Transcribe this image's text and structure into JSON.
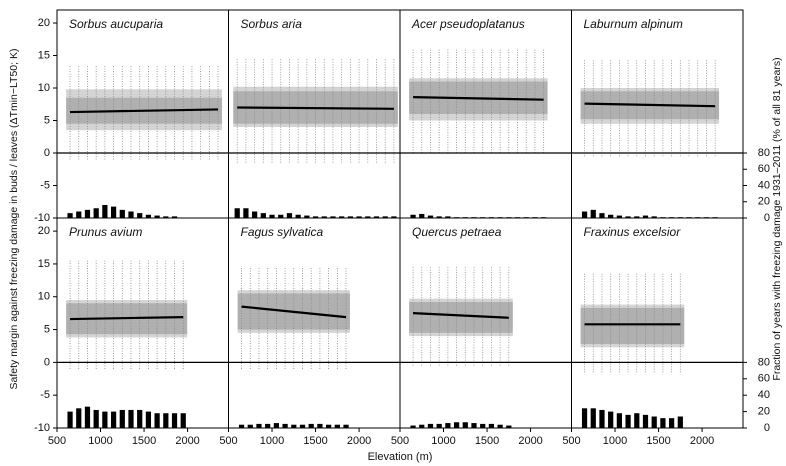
{
  "axes": {
    "xlabel": "Elevation (m)",
    "ylabel": "Safety margin against freezing damage in buds / leaves (ΔTmin−LT50; K)",
    "y2label": "Fraction of years with freezing damage 1931–2011 (% of all 81 years)",
    "xlim": [
      500,
      2470
    ],
    "xticks": [
      500,
      1000,
      1500,
      2000
    ],
    "ylim": [
      -10,
      22
    ],
    "yticks": [
      -10,
      -5,
      0,
      5,
      10,
      15,
      20
    ],
    "y2lim": [
      0,
      256
    ],
    "y2ticks": [
      0,
      20,
      40,
      60,
      80
    ]
  },
  "chart_data": [
    {
      "type": "box-bar",
      "title": "Sorbus aucuparia",
      "x": [
        650,
        750,
        850,
        950,
        1050,
        1150,
        1250,
        1350,
        1450,
        1550,
        1650,
        1750,
        1850,
        1950,
        2050,
        2150,
        2250,
        2350
      ],
      "trend": [
        6.3,
        6.7
      ],
      "band": [
        3.5,
        9.8
      ],
      "inner": [
        4.5,
        8.5
      ],
      "whisker": [
        -1,
        13.5
      ],
      "fraction": [
        6,
        8,
        10,
        12,
        16,
        14,
        10,
        8,
        6,
        4,
        3,
        2,
        2,
        0,
        0,
        0,
        0,
        0
      ]
    },
    {
      "type": "box-bar",
      "title": "Sorbus aria",
      "x": [
        600,
        700,
        800,
        900,
        1000,
        1100,
        1200,
        1300,
        1400,
        1500,
        1600,
        1700,
        1800,
        1900,
        2000,
        2100,
        2200,
        2300,
        2400
      ],
      "trend": [
        7.0,
        6.8
      ],
      "band": [
        4.0,
        10.2
      ],
      "inner": [
        4.5,
        9.5
      ],
      "whisker": [
        -1.5,
        14.5
      ],
      "fraction": [
        12,
        12,
        8,
        6,
        4,
        4,
        6,
        4,
        3,
        2,
        2,
        2,
        2,
        2,
        2,
        2,
        2,
        2,
        2
      ]
    },
    {
      "type": "box-bar",
      "title": "Acer pseudoplatanus",
      "x": [
        650,
        750,
        850,
        950,
        1050,
        1150,
        1250,
        1350,
        1450,
        1550,
        1650,
        1750,
        1850,
        1950,
        2050,
        2150
      ],
      "trend": [
        8.6,
        8.2
      ],
      "band": [
        5.0,
        11.5
      ],
      "inner": [
        6.0,
        11.0
      ],
      "whisker": [
        0,
        16
      ],
      "fraction": [
        4,
        5,
        3,
        2,
        2,
        1,
        1,
        1,
        1,
        1,
        1,
        1,
        1,
        1,
        1,
        1
      ]
    },
    {
      "type": "box-bar",
      "title": "Laburnum alpinum",
      "x": [
        650,
        750,
        850,
        950,
        1050,
        1150,
        1250,
        1350,
        1450,
        1550,
        1650,
        1750,
        1850,
        1950,
        2050,
        2150
      ],
      "trend": [
        7.6,
        7.2
      ],
      "band": [
        4.5,
        10.0
      ],
      "inner": [
        5.2,
        9.5
      ],
      "whisker": [
        -0.5,
        14.5
      ],
      "fraction": [
        8,
        10,
        6,
        4,
        3,
        2,
        2,
        3,
        2,
        1,
        1,
        1,
        1,
        1,
        1,
        1
      ]
    },
    {
      "type": "box-bar",
      "title": "Prunus avium",
      "x": [
        650,
        750,
        850,
        950,
        1050,
        1150,
        1250,
        1350,
        1450,
        1550,
        1650,
        1750,
        1850,
        1950
      ],
      "trend": [
        6.6,
        6.9
      ],
      "band": [
        3.8,
        9.5
      ],
      "inner": [
        4.3,
        9.0
      ],
      "whisker": [
        -1,
        15.5
      ],
      "fraction": [
        20,
        24,
        26,
        22,
        20,
        20,
        22,
        22,
        22,
        20,
        18,
        18,
        18,
        18
      ]
    },
    {
      "type": "box-bar",
      "title": "Fagus sylvatica",
      "x": [
        650,
        750,
        850,
        950,
        1050,
        1150,
        1250,
        1350,
        1450,
        1550,
        1650,
        1750,
        1850
      ],
      "trend": [
        8.5,
        6.9
      ],
      "band": [
        4.5,
        11.0
      ],
      "inner": [
        5.0,
        10.5
      ],
      "whisker": [
        -1,
        14.5
      ],
      "fraction": [
        4,
        4,
        5,
        5,
        6,
        5,
        4,
        4,
        5,
        5,
        4,
        4,
        4
      ]
    },
    {
      "type": "box-bar",
      "title": "Quercus petraea",
      "x": [
        650,
        750,
        850,
        950,
        1050,
        1150,
        1250,
        1350,
        1450,
        1550,
        1650,
        1750
      ],
      "trend": [
        7.5,
        6.8
      ],
      "band": [
        4.0,
        9.7
      ],
      "inner": [
        4.5,
        9.2
      ],
      "whisker": [
        -0.5,
        14.5
      ],
      "fraction": [
        3,
        4,
        5,
        5,
        6,
        7,
        7,
        6,
        5,
        5,
        4,
        3
      ]
    },
    {
      "type": "box-bar",
      "title": "Fraxinus excelsior",
      "x": [
        650,
        750,
        850,
        950,
        1050,
        1150,
        1250,
        1350,
        1450,
        1550,
        1650,
        1750
      ],
      "trend": [
        5.8,
        5.8
      ],
      "band": [
        2.3,
        8.8
      ],
      "inner": [
        2.8,
        8.3
      ],
      "whisker": [
        -1.5,
        13.5
      ],
      "fraction": [
        24,
        24,
        22,
        20,
        18,
        16,
        18,
        16,
        14,
        12,
        12,
        14
      ]
    }
  ]
}
